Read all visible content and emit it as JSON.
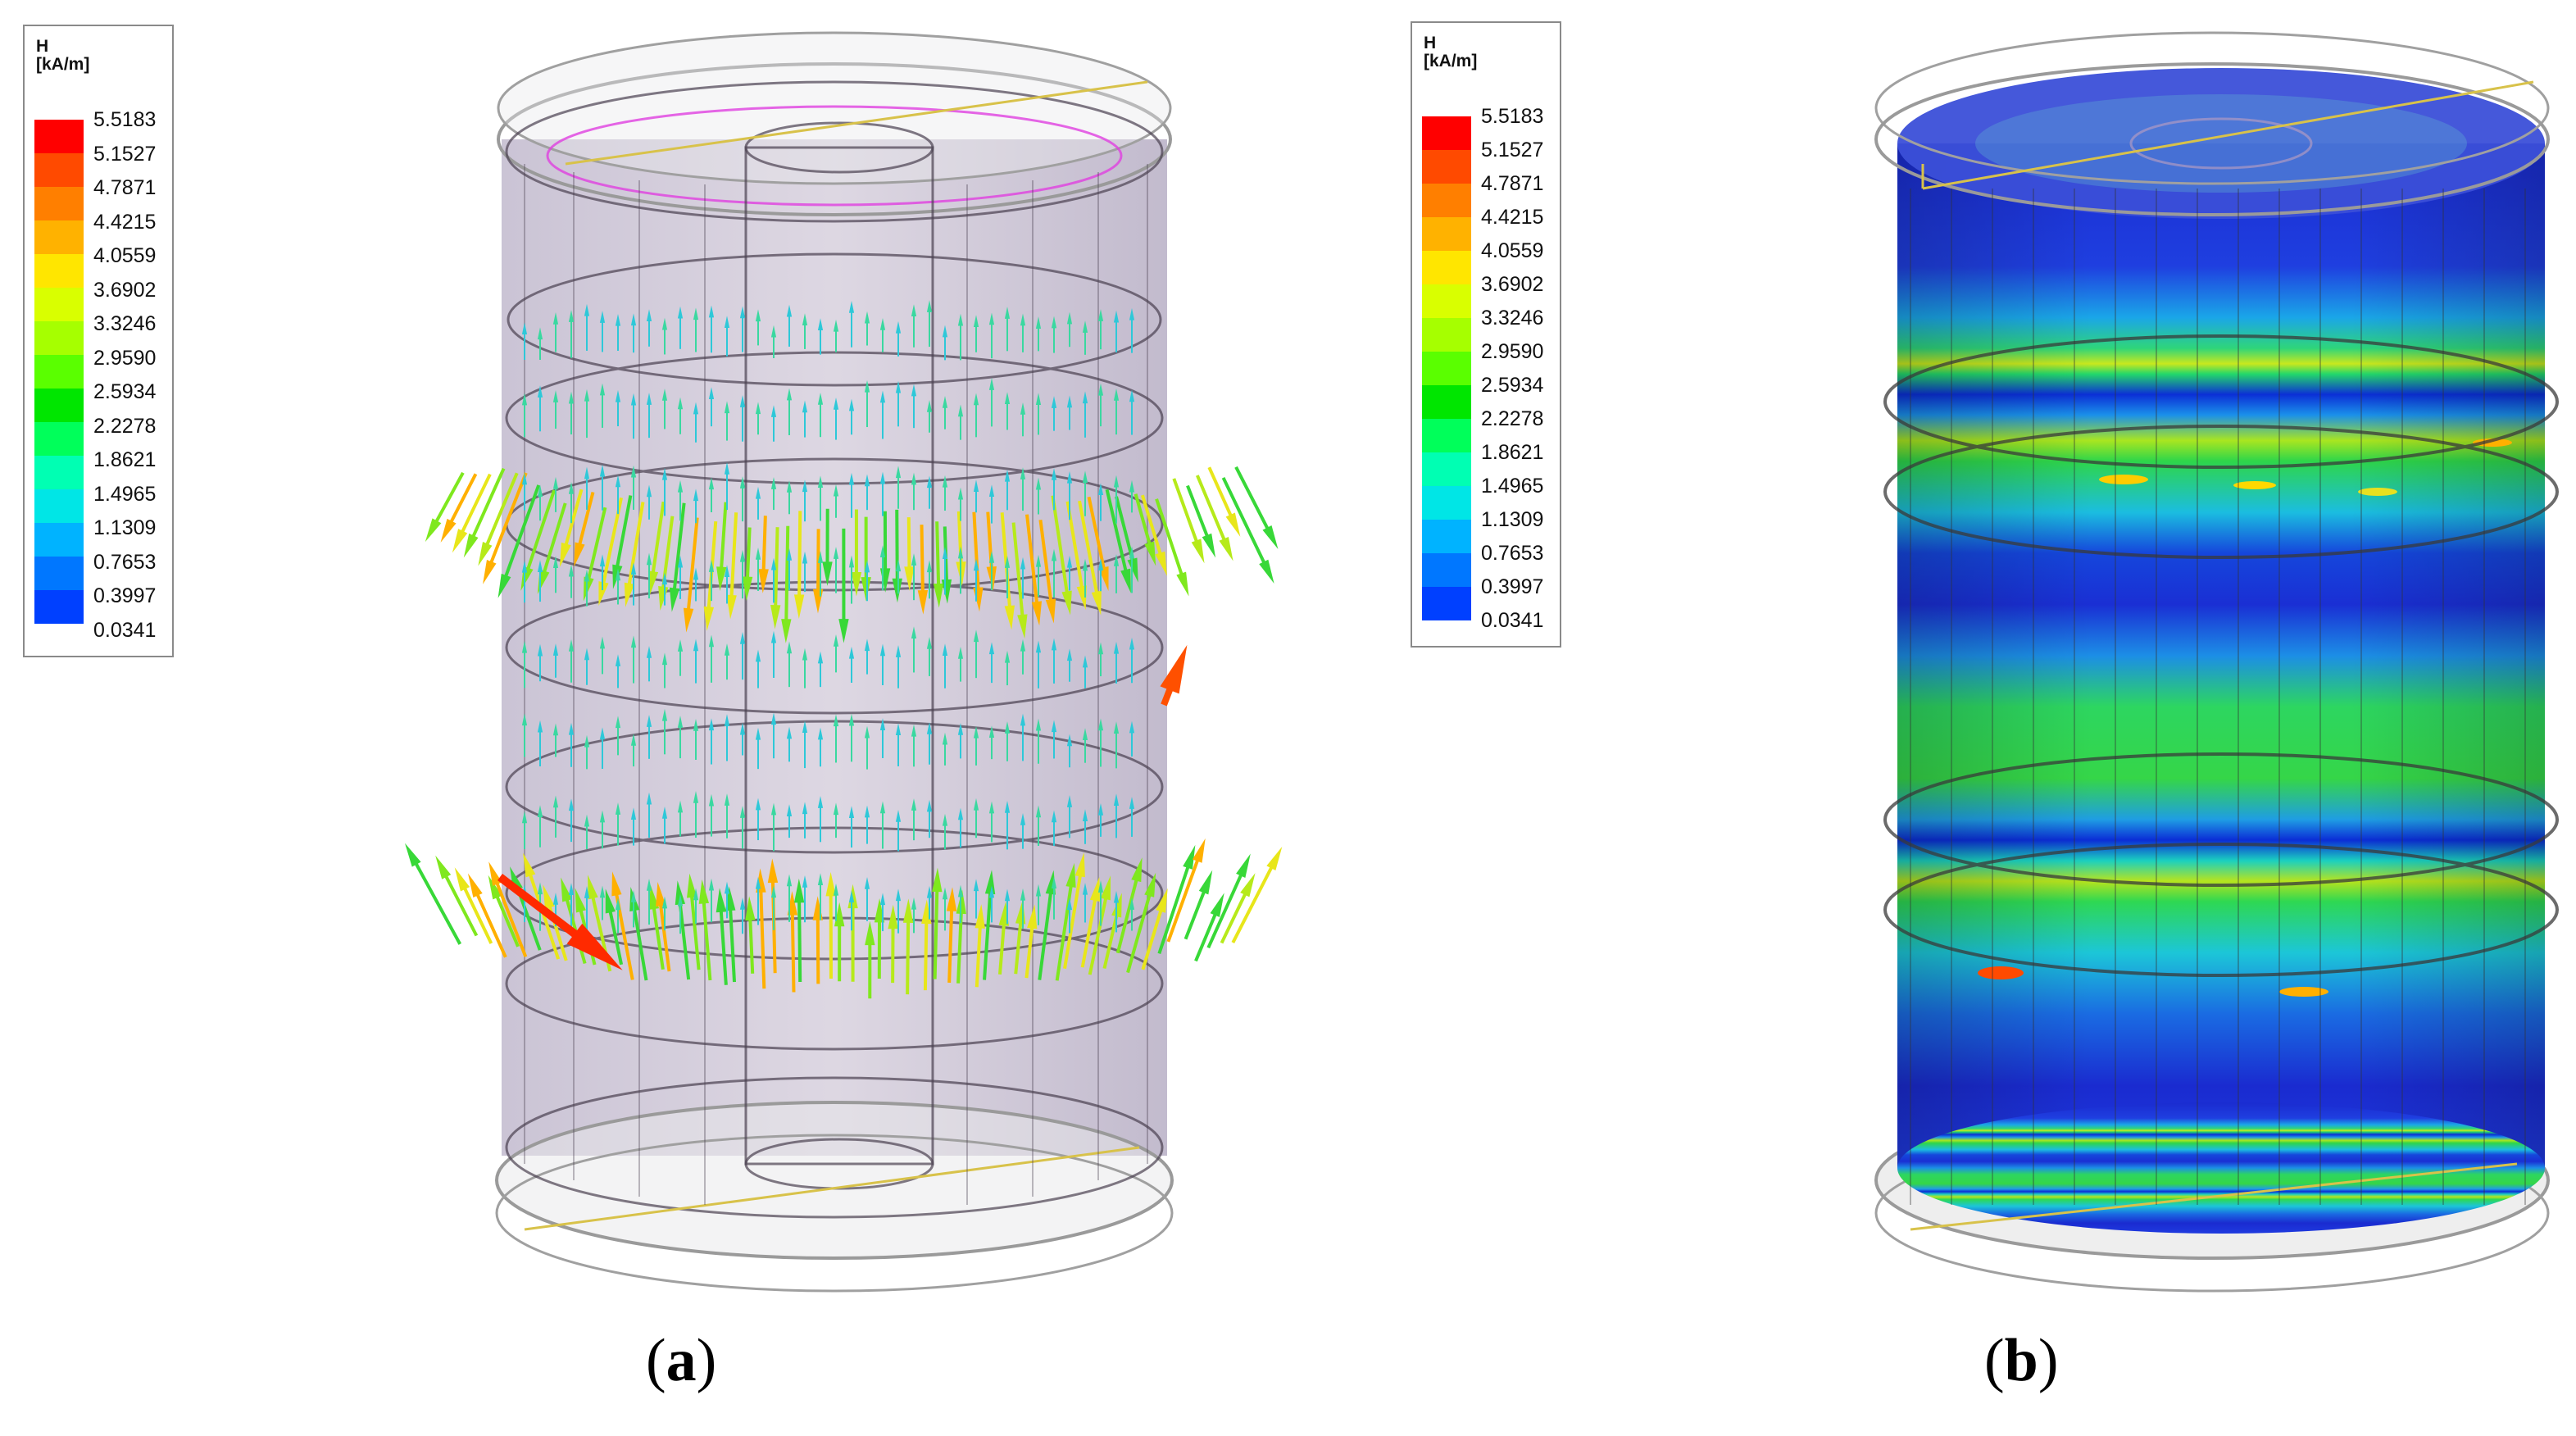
{
  "legend": {
    "quantity": "H",
    "unit": "[kA/m]",
    "ticks": [
      "5.5183",
      "5.1527",
      "4.7871",
      "4.4215",
      "4.0559",
      "3.6902",
      "3.3246",
      "2.9590",
      "2.5934",
      "2.2278",
      "1.8621",
      "1.4965",
      "1.1309",
      "0.7653",
      "0.3997",
      "0.0341"
    ],
    "colors": [
      "#ff0000",
      "#ff4a00",
      "#ff7f00",
      "#ffb200",
      "#ffe600",
      "#d9ff00",
      "#a6ff00",
      "#5aff00",
      "#00e600",
      "#00ff5a",
      "#00ffb3",
      "#00e6e6",
      "#00b3ff",
      "#0077ff",
      "#0040ff",
      "#0000ff"
    ]
  },
  "captions": {
    "a_open": "(",
    "a_letter": "a",
    "a_close": ")",
    "b_open": "(",
    "b_letter": "b",
    "b_close": ")"
  }
}
